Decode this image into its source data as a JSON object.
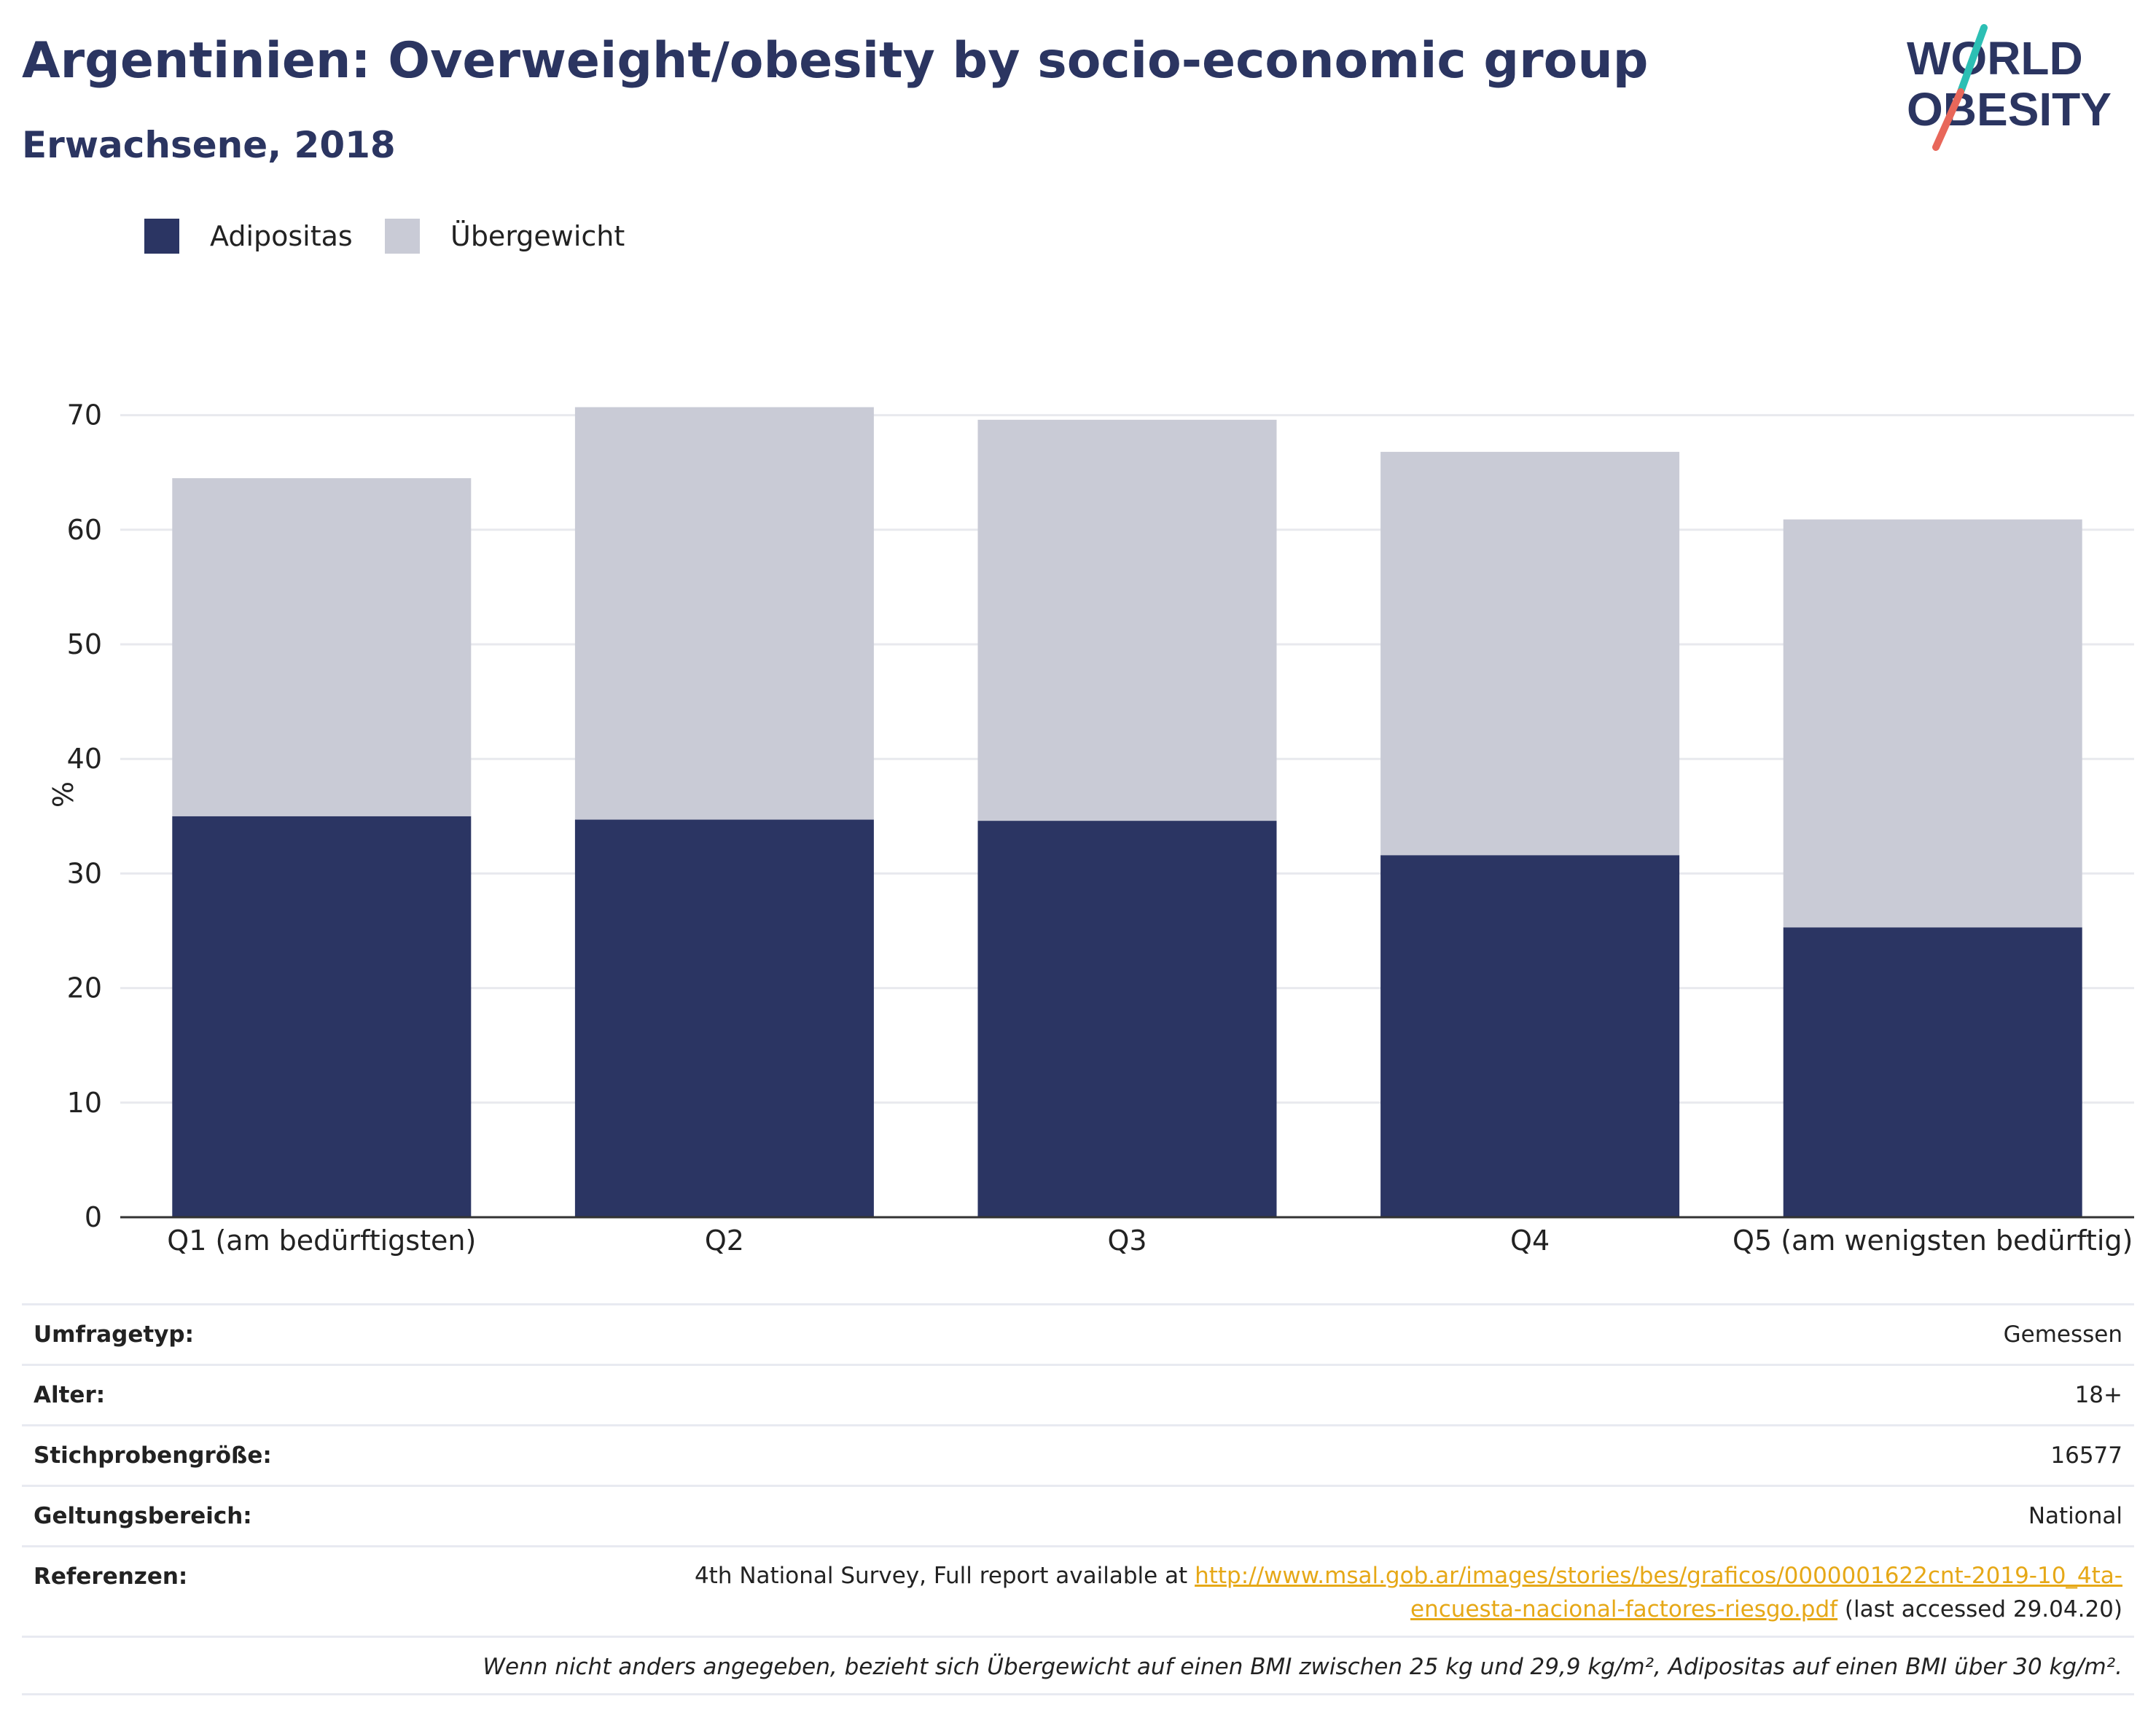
{
  "header": {
    "title": "Argentinien: Overweight/obesity by socio-economic group",
    "subtitle": "Erwachsene, 2018"
  },
  "logo": {
    "line1": "WORLD",
    "line2": "OBESITY",
    "colors": {
      "text": "#2b3561",
      "slash_top": "#2cbfb4",
      "slash_bottom": "#e8675a"
    }
  },
  "legend": [
    {
      "label": "Adipositas",
      "color": "#2b3563"
    },
    {
      "label": "Übergewicht",
      "color": "#c9cbd6"
    }
  ],
  "chart_data": {
    "type": "bar",
    "stacked": true,
    "categories": [
      "Q1 (am bedürftigsten)",
      "Q2",
      "Q3",
      "Q4",
      "Q5 (am wenigsten bedürftig)"
    ],
    "series": [
      {
        "name": "Adipositas",
        "color": "#2b3563",
        "values": [
          35.0,
          34.7,
          34.6,
          31.6,
          25.3
        ]
      },
      {
        "name": "Übergewicht",
        "color": "#c9cbd6",
        "values": [
          29.5,
          36.0,
          35.0,
          35.2,
          35.6
        ]
      }
    ],
    "totals": [
      64.5,
      70.7,
      69.6,
      66.8,
      60.9
    ],
    "ylabel": "%",
    "xlabel": "",
    "ylim": [
      0,
      70
    ],
    "yticks": [
      0,
      10,
      20,
      30,
      40,
      50,
      60,
      70
    ],
    "grid": true,
    "legend_position": "top-left"
  },
  "info": {
    "rows": [
      {
        "key": "Umfragetyp:",
        "value": "Gemessen"
      },
      {
        "key": "Alter:",
        "value": "18+"
      },
      {
        "key": "Stichprobengröße:",
        "value": "16577"
      },
      {
        "key": "Geltungsbereich:",
        "value": "National"
      }
    ],
    "references": {
      "key": "Referenzen:",
      "prefix": "4th National Survey, Full report available at ",
      "link_line1": "http://www.msal.gob.ar/images/stories/bes/graficos/0000001622cnt-2019-10_4ta-",
      "link_line2": "encuesta-nacional-factores-riesgo.pdf",
      "suffix": " (last accessed 29.04.20)"
    },
    "note": "Wenn nicht anders angegeben, bezieht sich Übergewicht auf einen BMI zwischen 25 kg und 29,9 kg/m², Adipositas auf einen BMI über 30 kg/m²."
  }
}
